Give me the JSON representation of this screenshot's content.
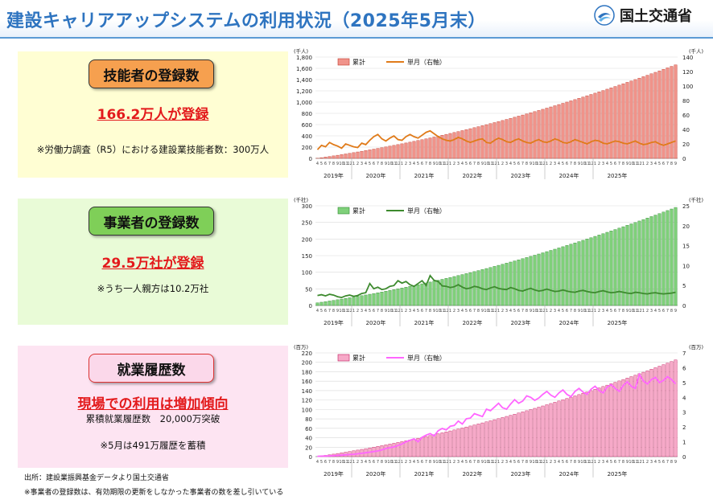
{
  "header": {
    "title": "建設キャリアアップシステムの利用状況（2025年5月末）",
    "logo_text": "国土交通省",
    "logo_icon": "mlit-logo-icon"
  },
  "panels": [
    {
      "label": "技能者の登録数",
      "headline": "166.2万人が登録",
      "note": "※労働力調査（R5）における建設業技能者数：300万人"
    },
    {
      "label": "事業者の登録数",
      "headline": "29.5万社が登録",
      "note": "※うち一人親方は10.2万社"
    },
    {
      "label": "就業履歴数",
      "headline": "現場での利用は増加傾向",
      "sub": "累積就業履歴数　20,000万突破",
      "note": "※5月は491万履歴を蓄積"
    }
  ],
  "footer": {
    "source": "出所：建設業振興基金データより国土交通省",
    "note": "※事業者の登録数は、有効期限の更新をしなかった事業者の数を差し引いている"
  },
  "colors": {
    "c1_bar": "#f0938a",
    "c1_line": "#e07b1a",
    "c2_bar": "#7fd07a",
    "c2_line": "#3d8a2e",
    "c3_bar": "#f6a9c8",
    "c3_line": "#ff66ff"
  },
  "chart_data": [
    {
      "type": "bar",
      "left_unit": "(千人)",
      "right_unit": "(千人)",
      "ylim": [
        0,
        1800
      ],
      "y2lim": [
        0,
        140
      ],
      "left_ticks": [
        0,
        200,
        400,
        600,
        800,
        1000,
        1200,
        1400,
        1600,
        1800
      ],
      "right_ticks": [
        0,
        20,
        40,
        60,
        80,
        100,
        120,
        140
      ],
      "year_labels": [
        "2019年",
        "2020年",
        "2021年",
        "2022年",
        "2023年",
        "2024年",
        "2025年"
      ],
      "series": [
        {
          "name": "累計",
          "kind": "bar",
          "axis": "left",
          "start": 2,
          "end": 1662
        },
        {
          "name": "単月（右軸）",
          "kind": "line",
          "axis": "right",
          "values": [
            12,
            18,
            16,
            22,
            19,
            17,
            14,
            20,
            18,
            16,
            15,
            21,
            19,
            25,
            30,
            33,
            27,
            24,
            28,
            31,
            26,
            25,
            30,
            33,
            30,
            28,
            32,
            36,
            38,
            34,
            30,
            27,
            25,
            24,
            26,
            29,
            27,
            24,
            22,
            24,
            26,
            27,
            22,
            21,
            25,
            28,
            26,
            23,
            22,
            25,
            27,
            24,
            22,
            21,
            24,
            26,
            23,
            22,
            24,
            27,
            25,
            22,
            21,
            23,
            26,
            24,
            22,
            20,
            23,
            25,
            24,
            21,
            20,
            22,
            24,
            23,
            21,
            20,
            22,
            24,
            21,
            19,
            20,
            22,
            23,
            20,
            18,
            20,
            22,
            24
          ]
        }
      ]
    },
    {
      "type": "bar",
      "left_unit": "(千社)",
      "right_unit": "(千社)",
      "ylim": [
        0,
        300
      ],
      "y2lim": [
        0,
        25
      ],
      "left_ticks": [
        0,
        50,
        100,
        150,
        200,
        250,
        300
      ],
      "right_ticks": [
        0,
        5,
        10,
        15,
        20,
        25
      ],
      "year_labels": [
        "2019年",
        "2020年",
        "2021年",
        "2022年",
        "2023年",
        "2024年",
        "2025年"
      ],
      "series": [
        {
          "name": "累計",
          "kind": "bar",
          "axis": "left",
          "start": 8,
          "end": 295
        },
        {
          "name": "単月（右軸）",
          "kind": "line",
          "axis": "right",
          "values": [
            2.5,
            2.7,
            2.4,
            2.8,
            2.6,
            2.2,
            2.0,
            2.4,
            2.6,
            2.3,
            2.5,
            3.0,
            3.2,
            5.5,
            4.2,
            4.6,
            4.0,
            4.2,
            4.8,
            5.0,
            6.2,
            5.6,
            6.0,
            5.2,
            4.8,
            5.5,
            6.2,
            5.0,
            7.5,
            6.3,
            6.0,
            4.9,
            4.8,
            4.5,
            4.7,
            5.2,
            4.6,
            4.2,
            4.4,
            4.8,
            4.6,
            4.2,
            4.0,
            4.4,
            4.7,
            4.3,
            4.1,
            4.0,
            4.5,
            4.2,
            3.8,
            3.6,
            4.0,
            4.3,
            3.9,
            3.6,
            3.8,
            4.1,
            3.8,
            3.5,
            3.6,
            3.9,
            3.6,
            3.4,
            3.3,
            3.6,
            3.8,
            3.5,
            3.3,
            3.2,
            3.5,
            3.7,
            3.4,
            3.2,
            3.3,
            3.5,
            3.3,
            3.1,
            3.0,
            3.3,
            3.2,
            3.0,
            2.9,
            3.1,
            3.2,
            3.0,
            2.9,
            3.0,
            3.1,
            3.3
          ]
        }
      ]
    },
    {
      "type": "bar",
      "left_unit": "(百万)",
      "right_unit": "(百万)",
      "ylim": [
        0,
        220
      ],
      "y2lim": [
        0,
        7
      ],
      "left_ticks": [
        0,
        20,
        40,
        60,
        80,
        100,
        120,
        140,
        160,
        180,
        200,
        220
      ],
      "right_ticks": [
        0,
        1,
        2,
        3,
        4,
        5,
        6,
        7
      ],
      "year_labels": [
        "2019年",
        "2020年",
        "2021年",
        "2022年",
        "2023年",
        "2024年",
        "2025年"
      ],
      "series": [
        {
          "name": "累計",
          "kind": "bar",
          "axis": "left",
          "start": 0,
          "end": 205
        },
        {
          "name": "単月（右軸）",
          "kind": "line",
          "axis": "right",
          "values": [
            0.02,
            0.03,
            0.04,
            0.05,
            0.06,
            0.08,
            0.1,
            0.12,
            0.14,
            0.16,
            0.19,
            0.22,
            0.26,
            0.3,
            0.34,
            0.38,
            0.45,
            0.55,
            0.6,
            0.65,
            0.75,
            0.85,
            1.0,
            1.1,
            1.2,
            1.0,
            1.3,
            1.45,
            1.55,
            1.4,
            1.75,
            1.9,
            1.8,
            2.05,
            2.1,
            2.4,
            2.2,
            2.55,
            2.6,
            2.9,
            2.8,
            2.7,
            3.2,
            3.1,
            3.35,
            3.6,
            3.3,
            3.2,
            3.55,
            3.85,
            3.6,
            3.75,
            4.1,
            4.0,
            3.8,
            3.95,
            4.2,
            4.4,
            4.15,
            4.0,
            4.3,
            4.5,
            4.2,
            4.05,
            4.4,
            4.6,
            4.35,
            4.2,
            4.55,
            4.75,
            4.45,
            4.3,
            4.7,
            4.85,
            4.6,
            4.4,
            4.8,
            5.05,
            4.75,
            4.6,
            5.55,
            5.1,
            4.9,
            5.2,
            5.35,
            5.0,
            5.15,
            5.4,
            5.2,
            4.91
          ]
        }
      ]
    }
  ]
}
